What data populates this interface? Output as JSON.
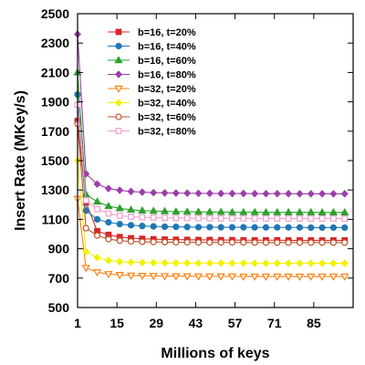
{
  "chart_data": {
    "type": "line",
    "title": "",
    "xlabel": "Millions of keys",
    "ylabel": "Insert Rate (MKey/s)",
    "xlim": [
      1,
      99
    ],
    "ylim": [
      500,
      2500
    ],
    "xticks": [
      1,
      15,
      29,
      43,
      57,
      71,
      85
    ],
    "yticks": [
      500,
      700,
      900,
      1100,
      1300,
      1500,
      1700,
      1900,
      2100,
      2300,
      2500
    ],
    "grid": false,
    "legend_position": "top-left",
    "x": [
      1,
      4,
      8,
      12,
      16,
      20,
      24,
      28,
      32,
      36,
      40,
      44,
      48,
      52,
      56,
      60,
      64,
      68,
      72,
      76,
      80,
      84,
      88,
      92,
      96
    ],
    "series": [
      {
        "name": "b=16, t=20%",
        "color": "#d62728",
        "marker": "square-filled",
        "values": [
          1770,
          1215,
          1020,
          995,
          980,
          972,
          968,
          965,
          963,
          962,
          961,
          960,
          960,
          959,
          959,
          958,
          958,
          958,
          958,
          957,
          957,
          957,
          957,
          957,
          957
        ]
      },
      {
        "name": "b=16, t=40%",
        "color": "#1f77b4",
        "marker": "circle-filled",
        "values": [
          1950,
          1160,
          1100,
          1080,
          1068,
          1060,
          1055,
          1052,
          1050,
          1049,
          1048,
          1047,
          1047,
          1046,
          1046,
          1046,
          1045,
          1045,
          1045,
          1045,
          1045,
          1044,
          1044,
          1044,
          1044
        ]
      },
      {
        "name": "b=16, t=60%",
        "color": "#2ca02c",
        "marker": "triangle-filled",
        "values": [
          2100,
          1270,
          1220,
          1190,
          1175,
          1165,
          1160,
          1157,
          1155,
          1153,
          1152,
          1151,
          1150,
          1150,
          1149,
          1149,
          1149,
          1148,
          1148,
          1148,
          1148,
          1148,
          1147,
          1147,
          1147
        ]
      },
      {
        "name": "b=16, t=80%",
        "color": "#9b3fa8",
        "marker": "diamond-filled",
        "values": [
          2360,
          1410,
          1340,
          1310,
          1298,
          1290,
          1285,
          1282,
          1280,
          1279,
          1278,
          1277,
          1277,
          1276,
          1276,
          1276,
          1275,
          1275,
          1275,
          1275,
          1274,
          1274,
          1274,
          1274,
          1274
        ]
      },
      {
        "name": "b=32, t=20%",
        "color": "#ff7f0e",
        "marker": "triangle-down-open",
        "values": [
          1240,
          770,
          740,
          728,
          722,
          718,
          716,
          715,
          714,
          713,
          713,
          712,
          712,
          712,
          712,
          711,
          711,
          711,
          711,
          711,
          711,
          711,
          711,
          711,
          711
        ]
      },
      {
        "name": "b=32, t=40%",
        "color": "#f2f200",
        "marker": "diamond-filled",
        "values": [
          1500,
          880,
          840,
          820,
          812,
          808,
          806,
          805,
          804,
          803,
          803,
          802,
          802,
          802,
          802,
          802,
          801,
          801,
          801,
          801,
          801,
          801,
          801,
          801,
          801
        ]
      },
      {
        "name": "b=32, t=60%",
        "color": "#c0522b",
        "marker": "circle-open",
        "values": [
          1750,
          1040,
          990,
          965,
          955,
          950,
          947,
          946,
          945,
          944,
          944,
          943,
          943,
          943,
          943,
          943,
          942,
          942,
          942,
          942,
          942,
          942,
          942,
          942,
          942
        ]
      },
      {
        "name": "b=32, t=80%",
        "color": "#f29cd0",
        "marker": "square-open",
        "values": [
          1880,
          1230,
          1170,
          1140,
          1125,
          1118,
          1114,
          1112,
          1110,
          1109,
          1108,
          1108,
          1107,
          1107,
          1107,
          1107,
          1106,
          1106,
          1106,
          1106,
          1106,
          1106,
          1106,
          1106,
          1106
        ]
      }
    ]
  }
}
